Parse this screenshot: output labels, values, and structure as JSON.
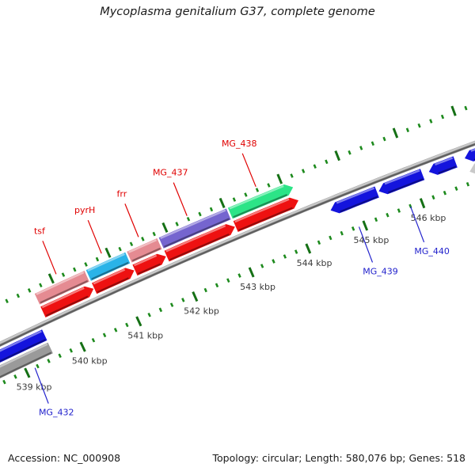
{
  "title": "Mycoplasma genitalium G37, complete genome",
  "footer": {
    "accession": "Accession: NC_000908",
    "stats": "Topology: circular; Length: 580,076 bp; Genes: 518"
  },
  "chart_data": {
    "type": "genome-map-arc",
    "organism": "Mycoplasma genitalium G37",
    "accession": "NC_000908",
    "topology": "circular",
    "length_bp": 580076,
    "gene_count": 518,
    "unit": "kbp",
    "visible_range_kbp": [
      538.4,
      547.6
    ],
    "ruler": {
      "major_interval_kbp": 1,
      "minor_interval_kbp": 0.2,
      "labels": [
        {
          "kbp": 539,
          "text": "539 kbp"
        },
        {
          "kbp": 540,
          "text": "540 kbp"
        },
        {
          "kbp": 541,
          "text": "541 kbp"
        },
        {
          "kbp": 542,
          "text": "542 kbp"
        },
        {
          "kbp": 543,
          "text": "543 kbp"
        },
        {
          "kbp": 544,
          "text": "544 kbp"
        },
        {
          "kbp": 545,
          "text": "545 kbp"
        },
        {
          "kbp": 546,
          "text": "546 kbp"
        }
      ]
    },
    "colors": {
      "forward_cds": "#ee1111",
      "reverse_cds": "#1414dd",
      "backbone": "#9a9a9a",
      "tick_major": "#157015",
      "tick_minor": "#1d8a1d",
      "forward_label": "#e00000",
      "reverse_label": "#2222cc",
      "ruler_text": "#3a3a3a"
    },
    "genes": [
      {
        "id": "MG_432",
        "label": "MG_432",
        "strand": "reverse",
        "start_kbp": 538.45,
        "end_kbp": 539.53,
        "category_color": "#9a9a9a",
        "clipped_left": true,
        "label_anchor_kbp": 539.15
      },
      {
        "id": "tsf",
        "label": "tsf",
        "strand": "forward",
        "start_kbp": 539.64,
        "end_kbp": 540.55,
        "category_color": "#e58b92",
        "label_anchor_kbp": 540.1
      },
      {
        "id": "pyrH",
        "label": "pyrH",
        "strand": "forward",
        "start_kbp": 540.55,
        "end_kbp": 541.27,
        "category_color": "#2ab3e8",
        "label_anchor_kbp": 540.9
      },
      {
        "id": "frr",
        "label": "frr",
        "strand": "forward",
        "start_kbp": 541.27,
        "end_kbp": 541.83,
        "category_color": "#e58b92",
        "label_anchor_kbp": 541.55
      },
      {
        "id": "MG_437",
        "label": "MG_437",
        "strand": "forward",
        "start_kbp": 541.83,
        "end_kbp": 543.04,
        "category_color": "#7565cf",
        "label_anchor_kbp": 542.4
      },
      {
        "id": "MG_438",
        "label": "MG_438",
        "strand": "forward",
        "start_kbp": 543.04,
        "end_kbp": 544.15,
        "category_color": "#2ce487",
        "category_tip": true,
        "label_anchor_kbp": 543.6
      },
      {
        "id": "MG_439",
        "label": "MG_439",
        "strand": "reverse",
        "start_kbp": 544.57,
        "end_kbp": 545.39,
        "category_color": null,
        "label_anchor_kbp": 544.9
      },
      {
        "id": "MG_440",
        "label": "MG_440",
        "strand": "reverse",
        "start_kbp": 545.41,
        "end_kbp": 546.18,
        "category_color": null,
        "label_anchor_kbp": 545.8
      },
      {
        "id": "gene-546a",
        "label": null,
        "strand": "reverse",
        "start_kbp": 546.28,
        "end_kbp": 546.75,
        "category_color": null
      },
      {
        "id": "gene-546b",
        "label": null,
        "strand": "reverse",
        "start_kbp": 546.9,
        "end_kbp": 547.45,
        "category_color": "#c9c9c9",
        "clipped_right": true
      }
    ]
  }
}
